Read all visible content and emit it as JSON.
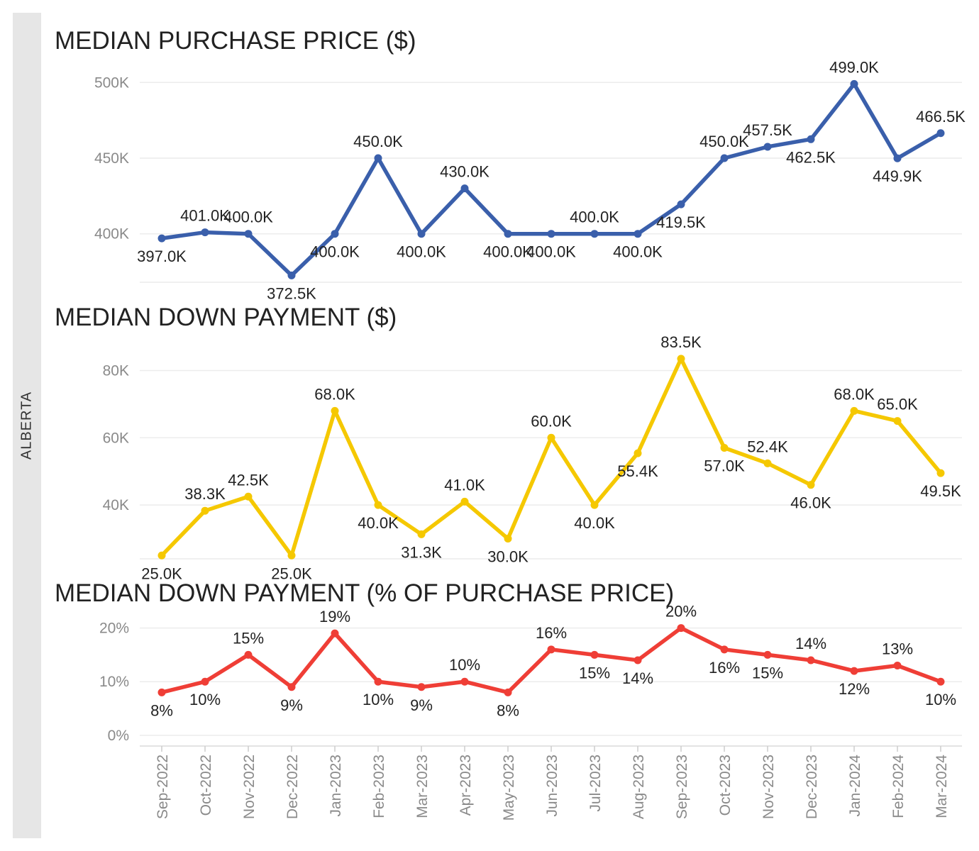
{
  "row_label": "ALBERTA",
  "x_categories": [
    "Sep-2022",
    "Oct-2022",
    "Nov-2022",
    "Dec-2022",
    "Jan-2023",
    "Feb-2023",
    "Mar-2023",
    "Apr-2023",
    "May-2023",
    "Jun-2023",
    "Jul-2023",
    "Aug-2023",
    "Sep-2023",
    "Oct-2023",
    "Nov-2023",
    "Dec-2023",
    "Jan-2024",
    "Feb-2024",
    "Mar-2024"
  ],
  "chart_data": [
    {
      "type": "line",
      "title": "MEDIAN PURCHASE PRICE ($)",
      "color": "#3a5fab",
      "ylim": [
        368000,
        502000
      ],
      "yticks": [
        400000,
        450000,
        500000
      ],
      "ytick_labels": [
        "400K",
        "450K",
        "500K"
      ],
      "series": [
        {
          "values": [
            397000,
            401000,
            400000,
            372500,
            400000,
            450000,
            400000,
            430000,
            400000,
            400000,
            400000,
            400000,
            419500,
            450000,
            457500,
            462500,
            499000,
            449900,
            466500
          ]
        }
      ],
      "data_labels": [
        "397.0K",
        "401.0K",
        "400.0K",
        "372.5K",
        "400.0K",
        "450.0K",
        "400.0K",
        "430.0K",
        "400.0K",
        "400.0K",
        "400.0K",
        "400.0K",
        "419.5K",
        "450.0K",
        "457.5K",
        "462.5K",
        "499.0K",
        "449.9K",
        "466.5K"
      ],
      "label_positions": [
        "below",
        "above",
        "above",
        "below",
        "below",
        "above",
        "below",
        "above",
        "below",
        "below",
        "above",
        "below",
        "below",
        "above",
        "above",
        "below",
        "above",
        "below",
        "above"
      ]
    },
    {
      "type": "line",
      "title": "MEDIAN DOWN PAYMENT ($)",
      "color": "#f5c800",
      "ylim": [
        24000,
        86000
      ],
      "yticks": [
        40000,
        60000,
        80000
      ],
      "ytick_labels": [
        "40K",
        "60K",
        "80K"
      ],
      "series": [
        {
          "values": [
            25000,
            38300,
            42500,
            25000,
            68000,
            40000,
            31300,
            41000,
            30000,
            60000,
            40000,
            55400,
            83500,
            57000,
            52400,
            46000,
            68000,
            65000,
            49500
          ]
        }
      ],
      "data_labels": [
        "25.0K",
        "38.3K",
        "42.5K",
        "25.0K",
        "68.0K",
        "40.0K",
        "31.3K",
        "41.0K",
        "30.0K",
        "60.0K",
        "40.0K",
        "55.4K",
        "83.5K",
        "57.0K",
        "52.4K",
        "46.0K",
        "68.0K",
        "65.0K",
        "49.5K"
      ],
      "label_positions": [
        "below",
        "above",
        "above",
        "below",
        "above",
        "below",
        "below",
        "above",
        "below",
        "above",
        "below",
        "below",
        "above",
        "below",
        "above",
        "below",
        "above",
        "above",
        "below"
      ]
    },
    {
      "type": "line",
      "title": "MEDIAN DOWN PAYMENT (% OF PURCHASE PRICE)",
      "color": "#ef3e36",
      "ylim": [
        -2,
        21
      ],
      "yticks": [
        0,
        10,
        20
      ],
      "ytick_labels": [
        "0%",
        "10%",
        "20%"
      ],
      "series": [
        {
          "values": [
            8,
            10,
            15,
            9,
            19,
            10,
            9,
            10,
            8,
            16,
            15,
            14,
            20,
            16,
            15,
            14,
            12,
            13,
            10
          ]
        }
      ],
      "data_labels": [
        "8%",
        "10%",
        "15%",
        "9%",
        "19%",
        "10%",
        "9%",
        "10%",
        "8%",
        "16%",
        "15%",
        "14%",
        "20%",
        "16%",
        "15%",
        "14%",
        "12%",
        "13%",
        "10%"
      ],
      "label_positions": [
        "below",
        "below",
        "above",
        "below",
        "above",
        "below",
        "below",
        "above",
        "below",
        "above",
        "below",
        "below",
        "above",
        "below",
        "below",
        "above",
        "below",
        "above",
        "below"
      ]
    }
  ]
}
